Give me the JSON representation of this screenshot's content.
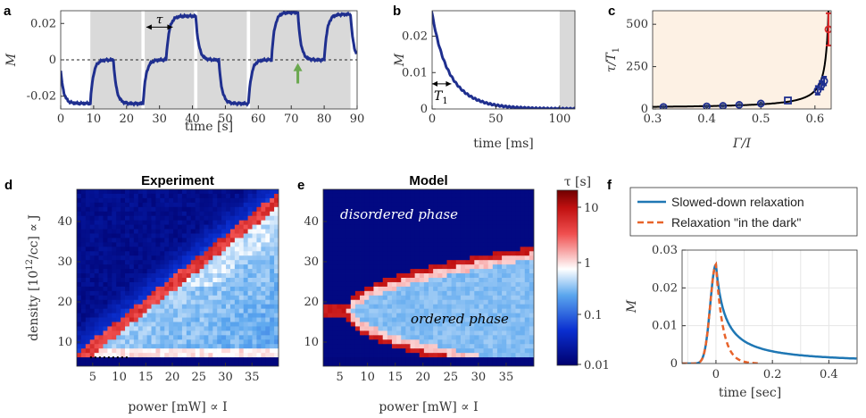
{
  "colors": {
    "trace": "#1f2f8f",
    "shade": "#d9d9d9",
    "panel_c_bg": "#fdf1e4",
    "model_red": "#d62728",
    "arrow_green": "#6aa84f",
    "slowed": "#1f77b4",
    "dark": "#e8632a"
  },
  "panels": {
    "a": {
      "label": "a",
      "ylabel": "M",
      "xlabel": "time [s]",
      "tau": "τ",
      "xticks": [
        "0",
        "10",
        "20",
        "30",
        "40",
        "50",
        "60",
        "70",
        "80",
        "90"
      ],
      "yticks": [
        "-0.02",
        "0",
        "0.02"
      ]
    },
    "b": {
      "label": "b",
      "ylabel": "M",
      "xlabel": "time [ms]",
      "t1": "T",
      "t1_sub": "1",
      "xticks": [
        "0",
        "50",
        "100"
      ],
      "yticks": [
        "0",
        "0.01",
        "0.02"
      ]
    },
    "c": {
      "label": "c",
      "ylabel": "τ/T",
      "ylabel_sub": "1",
      "xlabel": "Γ/I",
      "xticks": [
        "0.3",
        "0.4",
        "0.5",
        "0.6"
      ],
      "yticks": [
        "0",
        "250",
        "500"
      ]
    },
    "d": {
      "label": "d",
      "title": "Experiment",
      "ylabel": "density [10",
      "ylabel_sup": "12",
      "ylabel_tail": "/cc]  ∝ J",
      "xlabel": "power [mW] ∝ I",
      "xticks": [
        "5",
        "10",
        "15",
        "20",
        "25",
        "30",
        "35"
      ],
      "yticks": [
        "10",
        "20",
        "30",
        "40"
      ]
    },
    "e": {
      "label": "e",
      "title": "Model",
      "xlabel": "power [mW] ∝ I",
      "xticks": [
        "5",
        "10",
        "15",
        "20",
        "25",
        "30",
        "35"
      ],
      "yticks": [
        "10",
        "20",
        "30",
        "40"
      ],
      "disordered": "disordered phase",
      "ordered": "ordered phase"
    },
    "colorbar": {
      "title": "τ [s]",
      "ticks": [
        "10",
        "1",
        "0.1",
        "0.01"
      ]
    },
    "f": {
      "label": "f",
      "ylabel": "M",
      "xlabel": "time [sec]",
      "xticks": [
        "0",
        "0.2",
        "0.4"
      ],
      "yticks": [
        "0",
        "0.01",
        "0.02",
        "0.03"
      ],
      "legend": [
        "Slowed-down relaxation",
        "Relaxation \"in the dark\""
      ]
    }
  },
  "chart_data": [
    {
      "id": "a",
      "type": "line",
      "xlabel": "time [s]",
      "ylabel": "M",
      "xlim": [
        0,
        90
      ],
      "ylim": [
        -0.027,
        0.027
      ],
      "shaded_intervals": [
        [
          9,
          24.5
        ],
        [
          25.5,
          40.5
        ],
        [
          41.5,
          56.5
        ],
        [
          57.5,
          88
        ]
      ],
      "transitions": [
        {
          "t": 0,
          "from": -0.006,
          "to": -0.024
        },
        {
          "t": 9,
          "from": -0.024,
          "to": 0
        },
        {
          "t": 16,
          "from": 0,
          "to": -0.024
        },
        {
          "t": 25,
          "from": -0.024,
          "to": 0
        },
        {
          "t": 32,
          "from": 0,
          "to": 0.024
        },
        {
          "t": 41,
          "from": 0.024,
          "to": 0
        },
        {
          "t": 48,
          "from": 0,
          "to": -0.024
        },
        {
          "t": 57,
          "from": -0.024,
          "to": 0
        },
        {
          "t": 64,
          "from": 0,
          "to": 0.026
        },
        {
          "t": 72,
          "from": 0.026,
          "to": 0
        },
        {
          "t": 80,
          "from": 0,
          "to": 0.025
        },
        {
          "t": 88,
          "from": 0.025,
          "to": 0
        }
      ],
      "tau_arrow": [
        26,
        34
      ],
      "green_arrow_t": 72
    },
    {
      "id": "b",
      "type": "line",
      "xlabel": "time [ms]",
      "ylabel": "M",
      "xlim": [
        0,
        112
      ],
      "ylim": [
        0,
        0.027
      ],
      "initial": 0.0262,
      "T1": 12,
      "shaded_intervals": [
        [
          100,
          112
        ]
      ]
    },
    {
      "id": "c",
      "type": "scatter",
      "xlabel": "Γ/I",
      "ylabel": "τ/T1",
      "xlim": [
        0.3,
        0.63
      ],
      "ylim": [
        0,
        580
      ],
      "points": [
        {
          "x": 0.32,
          "y": 12,
          "marker": "circle"
        },
        {
          "x": 0.4,
          "y": 15,
          "marker": "circle"
        },
        {
          "x": 0.43,
          "y": 18,
          "marker": "circle"
        },
        {
          "x": 0.46,
          "y": 24,
          "marker": "circle"
        },
        {
          "x": 0.5,
          "y": 32,
          "marker": "circle"
        },
        {
          "x": 0.55,
          "y": 50,
          "marker": "square"
        },
        {
          "x": 0.605,
          "y": 110,
          "marker": "circle"
        },
        {
          "x": 0.612,
          "y": 140,
          "marker": "circle"
        },
        {
          "x": 0.617,
          "y": 165,
          "marker": "circle"
        },
        {
          "x": 0.625,
          "y": 470,
          "marker": "circle",
          "color": "red"
        }
      ],
      "fit": "divergent near 0.63"
    },
    {
      "id": "d",
      "type": "heatmap",
      "title": "Experiment",
      "xlabel": "power [mW] ∝ I",
      "ylabel": "density [10^12/cc] ∝ J",
      "xlim": [
        2,
        40
      ],
      "ylim": [
        4,
        48
      ],
      "colorscale": "log tau 0.01..20 s"
    },
    {
      "id": "e",
      "type": "heatmap",
      "title": "Model",
      "xlabel": "power [mW] ∝ I",
      "xlim": [
        2,
        40
      ],
      "ylim": [
        4,
        48
      ],
      "colorscale": "log tau 0.01..20 s"
    },
    {
      "id": "f",
      "type": "line",
      "xlabel": "time [sec]",
      "ylabel": "M",
      "xlim": [
        -0.12,
        0.5
      ],
      "ylim": [
        0,
        0.03
      ],
      "series": [
        {
          "name": "Slowed-down relaxation",
          "peak": 0.0262,
          "peak_t": 0,
          "decay": 0.12
        },
        {
          "name": "Relaxation \"in the dark\"",
          "peak": 0.0262,
          "peak_t": 0,
          "decay": 0.025
        }
      ]
    }
  ]
}
